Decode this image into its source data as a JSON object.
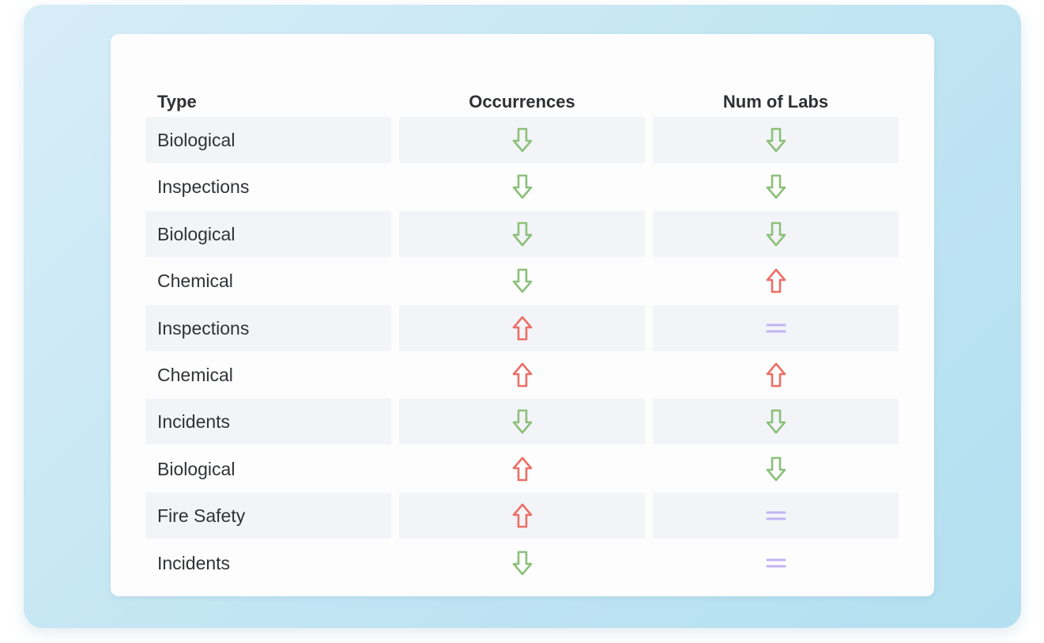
{
  "table": {
    "headers": {
      "type": "Type",
      "occurrences": "Occurrences",
      "num_labs": "Num of Labs"
    },
    "rows": [
      {
        "type": "Biological",
        "occurrences": "down",
        "num_labs": "down"
      },
      {
        "type": "Inspections",
        "occurrences": "down",
        "num_labs": "down"
      },
      {
        "type": "Biological",
        "occurrences": "down",
        "num_labs": "down"
      },
      {
        "type": "Chemical",
        "occurrences": "down",
        "num_labs": "up"
      },
      {
        "type": "Inspections",
        "occurrences": "up",
        "num_labs": "equal"
      },
      {
        "type": "Chemical",
        "occurrences": "up",
        "num_labs": "up"
      },
      {
        "type": "Incidents",
        "occurrences": "down",
        "num_labs": "down"
      },
      {
        "type": "Biological",
        "occurrences": "up",
        "num_labs": "down"
      },
      {
        "type": "Fire Safety",
        "occurrences": "up",
        "num_labs": "equal"
      },
      {
        "type": "Incidents",
        "occurrences": "down",
        "num_labs": "equal"
      }
    ]
  },
  "colors": {
    "down": "#8cc07a",
    "up": "#ec6f66",
    "equal": "#c3b3f2"
  },
  "icons": {
    "down": "arrow-down-icon",
    "up": "arrow-up-icon",
    "equal": "equal-icon"
  }
}
